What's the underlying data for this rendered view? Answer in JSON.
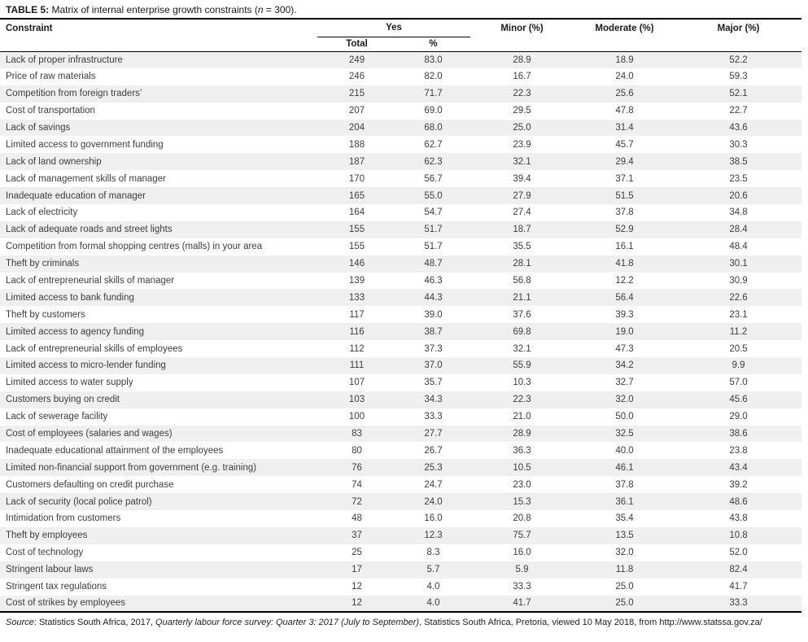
{
  "title": {
    "label": "TABLE 5:",
    "text_pre": " Matrix of internal enterprise growth constraints (",
    "n_symbol": "n",
    "text_post": " = 300)."
  },
  "columns": {
    "constraint": "Constraint",
    "yes": "Yes",
    "total": "Total",
    "pct": "%",
    "minor": "Minor (%)",
    "moderate": "Moderate (%)",
    "major": "Major (%)"
  },
  "table": {
    "rows": [
      [
        "Lack of proper infrastructure",
        "249",
        "83.0",
        "28.9",
        "18.9",
        "52.2"
      ],
      [
        "Price of raw materials",
        "246",
        "82.0",
        "16.7",
        "24.0",
        "59.3"
      ],
      [
        "Competition from foreign traders’",
        "215",
        "71.7",
        "22.3",
        "25.6",
        "52.1"
      ],
      [
        "Cost of transportation",
        "207",
        "69.0",
        "29.5",
        "47.8",
        "22.7"
      ],
      [
        "Lack of savings",
        "204",
        "68.0",
        "25.0",
        "31.4",
        "43.6"
      ],
      [
        "Limited access to government funding",
        "188",
        "62.7",
        "23.9",
        "45.7",
        "30.3"
      ],
      [
        "Lack of land ownership",
        "187",
        "62.3",
        "32.1",
        "29.4",
        "38.5"
      ],
      [
        "Lack of management skills of manager",
        "170",
        "56.7",
        "39.4",
        "37.1",
        "23.5"
      ],
      [
        "Inadequate education of manager",
        "165",
        "55.0",
        "27.9",
        "51.5",
        "20.6"
      ],
      [
        "Lack of electricity",
        "164",
        "54.7",
        "27.4",
        "37.8",
        "34.8"
      ],
      [
        "Lack of adequate roads and street lights",
        "155",
        "51.7",
        "18.7",
        "52.9",
        "28.4"
      ],
      [
        "Competition from formal shopping centres (malls) in your area",
        "155",
        "51.7",
        "35.5",
        "16.1",
        "48.4"
      ],
      [
        "Theft by criminals",
        "146",
        "48.7",
        "28.1",
        "41.8",
        "30.1"
      ],
      [
        "Lack of entrepreneurial skills of manager",
        "139",
        "46.3",
        "56.8",
        "12.2",
        "30.9"
      ],
      [
        "Limited access to bank funding",
        "133",
        "44.3",
        "21.1",
        "56.4",
        "22.6"
      ],
      [
        "Theft by customers",
        "117",
        "39.0",
        "37.6",
        "39.3",
        "23.1"
      ],
      [
        "Limited access to agency funding",
        "116",
        "38.7",
        "69.8",
        "19.0",
        "11.2"
      ],
      [
        "Lack of entrepreneurial skills of employees",
        "112",
        "37.3",
        "32.1",
        "47.3",
        "20.5"
      ],
      [
        "Limited access to micro-lender funding",
        "111",
        "37.0",
        "55.9",
        "34.2",
        "9.9"
      ],
      [
        "Limited access to water supply",
        "107",
        "35.7",
        "10.3",
        "32.7",
        "57.0"
      ],
      [
        "Customers buying on credit",
        "103",
        "34.3",
        "22.3",
        "32.0",
        "45.6"
      ],
      [
        "Lack of sewerage facility",
        "100",
        "33.3",
        "21.0",
        "50.0",
        "29.0"
      ],
      [
        "Cost of employees (salaries and wages)",
        "83",
        "27.7",
        "28.9",
        "32.5",
        "38.6"
      ],
      [
        "Inadequate educational attainment of the employees",
        "80",
        "26.7",
        "36.3",
        "40.0",
        "23.8"
      ],
      [
        "Limited non-financial support from government (e.g. training)",
        "76",
        "25.3",
        "10.5",
        "46.1",
        "43.4"
      ],
      [
        "Customers defaulting on credit purchase",
        "74",
        "24.7",
        "23.0",
        "37.8",
        "39.2"
      ],
      [
        "Lack of security (local police patrol)",
        "72",
        "24.0",
        "15.3",
        "36.1",
        "48.6"
      ],
      [
        "Intimidation from customers",
        "48",
        "16.0",
        "20.8",
        "35.4",
        "43.8"
      ],
      [
        "Theft by employees",
        "37",
        "12.3",
        "75.7",
        "13.5",
        "10.8"
      ],
      [
        "Cost of technology",
        "25",
        "8.3",
        "16.0",
        "32.0",
        "52.0"
      ],
      [
        "Stringent labour laws",
        "17",
        "5.7",
        "5.9",
        "11.8",
        "82.4"
      ],
      [
        "Stringent tax regulations",
        "12",
        "4.0",
        "33.3",
        "25.0",
        "41.7"
      ],
      [
        "Cost of strikes by employees",
        "12",
        "4.0",
        "41.7",
        "25.0",
        "33.3"
      ]
    ]
  },
  "source": {
    "label": "Source",
    "text1": ": Statistics South Africa, 2017, ",
    "italic": "Quarterly labour force survey: Quarter 3: 2017 (July to September)",
    "text2": ", Statistics South Africa, Pretoria, viewed 10 May 2018, from http://www.statssa.gov.za/"
  },
  "colors": {
    "zebra_stripe": "#efefef",
    "rule_line": "#000000",
    "body_text": "#3d3d3d",
    "header_text": "#1a1a1a"
  }
}
